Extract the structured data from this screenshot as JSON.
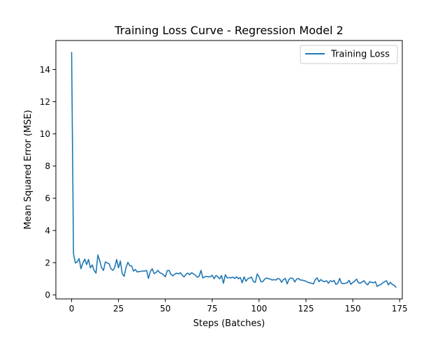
{
  "chart_data": {
    "type": "line",
    "title": "Training Loss Curve - Regression Model 2",
    "xlabel": "Steps (Batches)",
    "ylabel": "Mean Squared Error (MSE)",
    "xlim": [
      -8.4,
      176.4
    ],
    "ylim": [
      -0.25,
      15.8
    ],
    "x_ticks": [
      0,
      25,
      50,
      75,
      100,
      125,
      150,
      175
    ],
    "y_ticks": [
      0,
      2,
      4,
      6,
      8,
      10,
      12,
      14
    ],
    "grid": false,
    "legend": "top-right",
    "series": [
      {
        "name": "Training Loss",
        "color": "#1f77b4",
        "x_start": 0,
        "x_step": 1,
        "values": [
          15.05,
          2.55,
          1.98,
          2.05,
          2.25,
          1.62,
          1.98,
          2.22,
          1.88,
          2.2,
          1.68,
          1.86,
          1.52,
          1.35,
          2.48,
          2.12,
          1.68,
          1.52,
          2.05,
          1.98,
          1.93,
          1.62,
          1.52,
          1.7,
          2.2,
          1.68,
          2.1,
          1.32,
          1.15,
          1.68,
          2.02,
          1.82,
          1.8,
          1.48,
          1.58,
          1.42,
          1.45,
          1.46,
          1.48,
          1.48,
          1.52,
          1.02,
          1.45,
          1.62,
          1.32,
          1.38,
          1.52,
          1.38,
          1.33,
          1.25,
          1.12,
          1.5,
          1.52,
          1.28,
          1.18,
          1.28,
          1.35,
          1.3,
          1.38,
          1.22,
          1.12,
          1.28,
          1.35,
          1.25,
          1.38,
          1.3,
          1.22,
          1.1,
          1.15,
          1.52,
          1.05,
          1.12,
          1.15,
          1.12,
          1.12,
          1.22,
          1.0,
          1.2,
          1.12,
          1.0,
          1.2,
          0.72,
          1.25,
          1.05,
          1.08,
          1.05,
          1.1,
          1.02,
          1.12,
          1.0,
          1.08,
          0.75,
          1.12,
          0.85,
          1.0,
          1.05,
          1.1,
          0.82,
          0.78,
          1.3,
          1.12,
          0.82,
          0.82,
          0.98,
          1.05,
          1.0,
          0.98,
          0.92,
          0.95,
          0.92,
          1.02,
          0.98,
          0.78,
          0.95,
          1.02,
          0.68,
          0.98,
          1.05,
          1.02,
          0.8,
          0.98,
          1.02,
          0.92,
          0.92,
          0.88,
          0.85,
          0.78,
          0.75,
          0.72,
          0.68,
          0.95,
          1.05,
          0.82,
          0.95,
          0.85,
          0.82,
          0.88,
          0.72,
          0.88,
          0.82,
          0.9,
          0.65,
          0.72,
          1.02,
          0.72,
          0.7,
          0.72,
          0.75,
          0.9,
          0.65,
          0.78,
          0.85,
          0.98,
          0.75,
          0.72,
          0.8,
          0.88,
          0.7,
          0.62,
          0.82,
          0.78,
          0.75,
          0.82,
          0.52,
          0.6,
          0.65,
          0.75,
          0.82,
          0.88,
          0.62,
          0.78,
          0.65,
          0.6,
          0.48
        ]
      }
    ]
  }
}
